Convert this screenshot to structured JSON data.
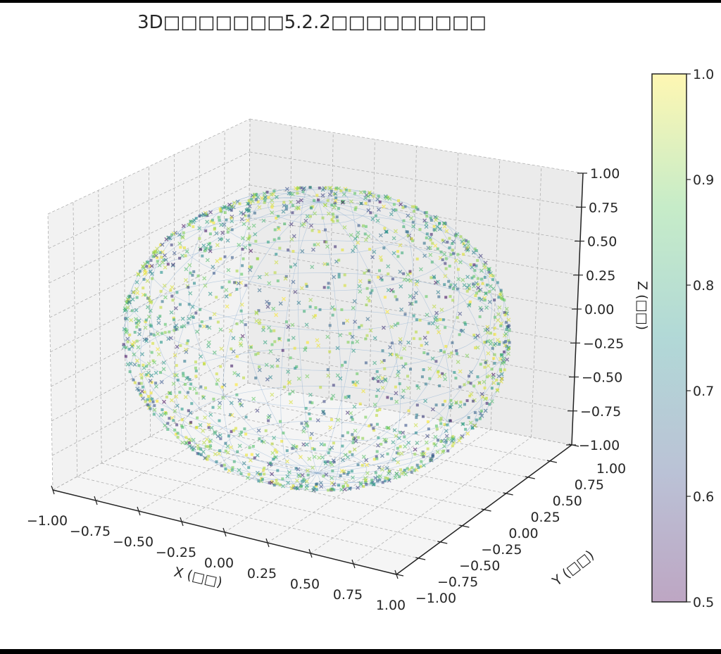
{
  "chart_data": {
    "type": "scatter3d",
    "title": "3D□□□□□□□5.2.2□□□□□□□□□",
    "xlabel": "X (□□)",
    "ylabel": "Y (□□)",
    "zlabel": "Z (□□)",
    "xlim": [
      -1,
      1
    ],
    "ylim": [
      -1,
      1
    ],
    "zlim": [
      -1,
      1
    ],
    "xticks": [
      "−1.00",
      "−0.75",
      "−0.50",
      "−0.25",
      "0.00",
      "0.25",
      "0.50",
      "0.75",
      "1.00"
    ],
    "yticks": [
      "−1.00",
      "−0.75",
      "−0.50",
      "−0.25",
      "0.00",
      "0.25",
      "0.50",
      "0.75",
      "1.00"
    ],
    "zticks": [
      "−1.00",
      "−0.75",
      "−0.50",
      "−0.25",
      "0.00",
      "0.25",
      "0.50",
      "0.75",
      "1.00"
    ],
    "grid": true,
    "surface": "unit sphere wireframe",
    "point_count": 1800,
    "value_range": [
      0.5,
      1.0
    ],
    "colormap": "viridis",
    "colorbar": {
      "range": [
        0.5,
        1.0
      ],
      "ticks": [
        "0.5",
        "0.6",
        "0.7",
        "0.8",
        "0.9",
        "1.0"
      ],
      "placement": "right"
    }
  }
}
